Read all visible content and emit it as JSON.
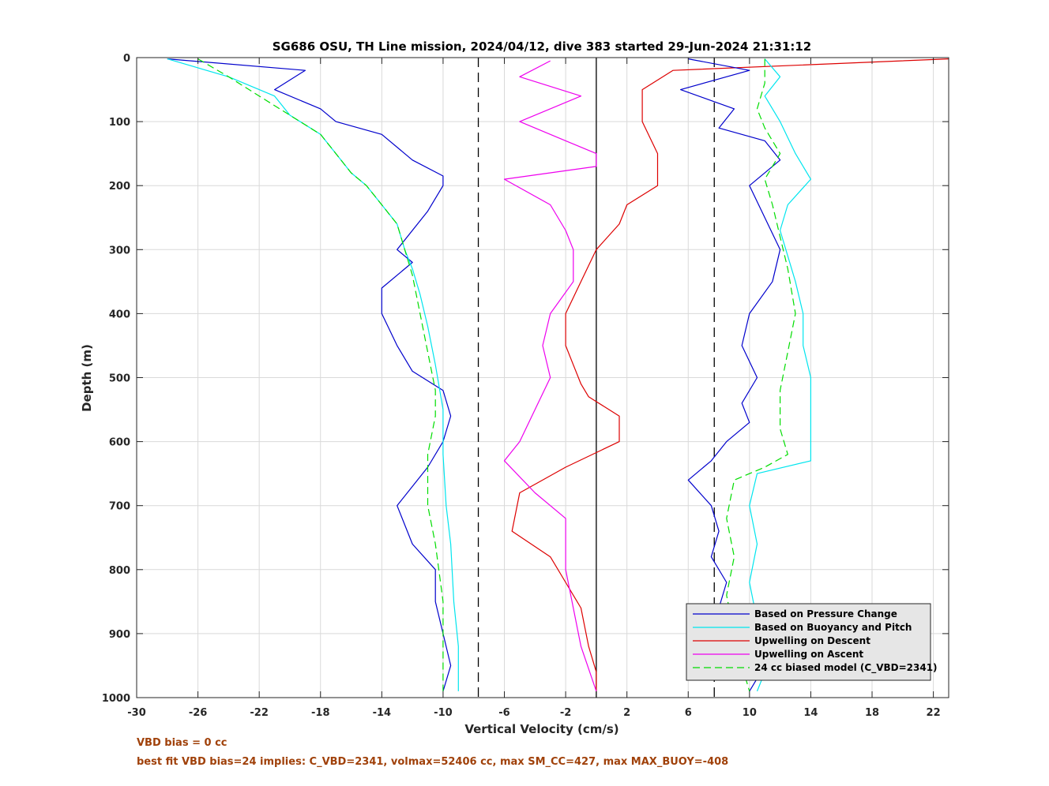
{
  "chart_data": {
    "type": "line",
    "title": "SG686 OSU, TH Line mission, 2024/04/12, dive 383 started 29-Jun-2024 21:31:12",
    "xlabel": "Vertical Velocity (cm/s)",
    "ylabel": "Depth (m)",
    "xlim": [
      -30,
      23
    ],
    "ylim": [
      0,
      1000
    ],
    "y_reversed": true,
    "grid": true,
    "xticks": [
      -30,
      -26,
      -22,
      -18,
      -14,
      -10,
      -6,
      -2,
      2,
      6,
      10,
      14,
      18,
      22
    ],
    "yticks": [
      0,
      100,
      200,
      300,
      400,
      500,
      600,
      700,
      800,
      900,
      1000
    ],
    "legend_position": "bottom-right",
    "reference_lines": [
      {
        "x": -7.7,
        "style": "dashed",
        "color": "#000000"
      },
      {
        "x": 0,
        "style": "solid",
        "color": "#000000"
      },
      {
        "x": 7.7,
        "style": "dashed",
        "color": "#000000"
      }
    ],
    "series": [
      {
        "name": "Based on Pressure Change",
        "color": "#0000cc",
        "style": "solid",
        "x": [
          -28,
          -19,
          -21,
          -18,
          -17,
          -14,
          -12,
          -10,
          -10,
          -11,
          -13,
          -12,
          -14,
          -14,
          -13,
          -12,
          -10,
          -9.5,
          -10,
          -11,
          -13,
          -12,
          -10.5,
          -10.5,
          -9.5,
          -10
        ],
        "y": [
          2,
          20,
          50,
          80,
          100,
          120,
          160,
          185,
          200,
          240,
          300,
          320,
          360,
          400,
          450,
          490,
          520,
          560,
          600,
          640,
          700,
          760,
          800,
          850,
          950,
          990
        ]
      },
      {
        "name": "Based on Buoyancy and Pitch",
        "color": "#00e5ee",
        "style": "solid",
        "x": [
          -28,
          -24,
          -21,
          -20,
          -18,
          -17,
          -16,
          -15,
          -14,
          -13,
          -12.5,
          -12,
          -11.5,
          -11,
          -10.5,
          -10,
          -10,
          -9.8,
          -9.5,
          -9.3,
          -9,
          -9
        ],
        "y": [
          2,
          30,
          60,
          90,
          120,
          150,
          180,
          200,
          230,
          260,
          300,
          330,
          370,
          420,
          480,
          550,
          620,
          700,
          760,
          850,
          920,
          990
        ]
      },
      {
        "name": "Upwelling on Descent",
        "color": "#dd0000",
        "style": "solid",
        "x": [
          23,
          5,
          3,
          3,
          4,
          4,
          2,
          1.5,
          0,
          -1,
          -2,
          -2,
          -1.5,
          -1,
          -0.5,
          0.5,
          1.5,
          1.5,
          -2,
          -5,
          -5.5,
          -3,
          -2,
          -1,
          -0.5,
          0,
          0
        ],
        "y": [
          2,
          20,
          50,
          100,
          150,
          200,
          230,
          260,
          300,
          350,
          400,
          450,
          480,
          510,
          530,
          545,
          560,
          600,
          640,
          680,
          740,
          780,
          820,
          860,
          920,
          960,
          990
        ]
      },
      {
        "name": "Upwelling on Ascent",
        "color": "#ee00ee",
        "style": "solid",
        "x": [
          -3,
          -5,
          -1,
          -5,
          -2,
          0,
          0,
          -6,
          -3,
          -2,
          -1.5,
          -1.5,
          -3,
          -3.5,
          -3,
          -4,
          -5,
          -6,
          -4,
          -2,
          -2,
          -1.5,
          -1,
          0
        ],
        "y": [
          5,
          30,
          60,
          100,
          130,
          150,
          170,
          190,
          230,
          270,
          300,
          350,
          400,
          450,
          500,
          550,
          600,
          630,
          680,
          720,
          800,
          860,
          920,
          990
        ]
      },
      {
        "name": "24 cc biased model (C_VBD=2341)",
        "color": "#00dd00",
        "style": "dashed",
        "x": [
          -26,
          -24,
          -22,
          -20,
          -18,
          -17,
          -16,
          -15,
          -14,
          -13,
          -12.5,
          -12,
          -11.5,
          -11,
          -10.5,
          -10.5,
          -11,
          -11,
          -10.5,
          -10,
          -10,
          -10
        ],
        "y": [
          2,
          30,
          60,
          90,
          120,
          150,
          180,
          200,
          230,
          260,
          300,
          340,
          400,
          460,
          520,
          560,
          620,
          700,
          760,
          850,
          920,
          990
        ]
      },
      {
        "name": "",
        "color": "#0000cc",
        "style": "solid",
        "x": [
          6,
          10,
          5.5,
          9,
          8,
          11,
          12,
          10,
          11,
          12,
          11.5,
          10,
          9.5,
          10.5,
          9.5,
          10,
          8.5,
          7.5,
          6,
          7.5,
          8,
          7.5,
          8.5,
          8,
          9,
          9.5,
          10,
          10.5,
          10
        ],
        "y": [
          2,
          20,
          50,
          80,
          110,
          130,
          160,
          200,
          250,
          300,
          350,
          400,
          450,
          500,
          540,
          570,
          600,
          630,
          660,
          700,
          740,
          780,
          820,
          860,
          900,
          920,
          950,
          970,
          990
        ]
      },
      {
        "name": "",
        "color": "#00e5ee",
        "style": "solid",
        "x": [
          11,
          12,
          11,
          12,
          13,
          14,
          12.5,
          12,
          12.5,
          13,
          13.5,
          13.5,
          14,
          14,
          14,
          10.5,
          10,
          10.5,
          10,
          10.5,
          11,
          10.5
        ],
        "y": [
          2,
          30,
          60,
          100,
          150,
          190,
          230,
          270,
          310,
          350,
          400,
          450,
          500,
          560,
          630,
          650,
          700,
          760,
          820,
          880,
          960,
          990
        ]
      },
      {
        "name": "",
        "color": "#00dd00",
        "style": "dashed",
        "x": [
          11,
          11,
          10.5,
          11,
          12,
          11,
          11.5,
          12,
          12.5,
          13,
          12.5,
          12,
          12,
          12.5,
          11,
          9,
          8.5,
          9,
          8.5,
          9,
          9.5,
          10
        ],
        "y": [
          2,
          40,
          80,
          110,
          150,
          190,
          230,
          280,
          330,
          400,
          460,
          520,
          580,
          620,
          640,
          660,
          720,
          780,
          840,
          900,
          950,
          990
        ]
      }
    ]
  },
  "footnotes": {
    "line1": "VBD bias = 0 cc",
    "line2": "best fit VBD bias=24 implies: C_VBD=2341, volmax=52406 cc, max SM_CC=427, max MAX_BUOY=-408"
  },
  "colors": {
    "footnote": "#a0410a",
    "legend_bg": "#e6e6e6",
    "grid": "#d9d9d9"
  }
}
